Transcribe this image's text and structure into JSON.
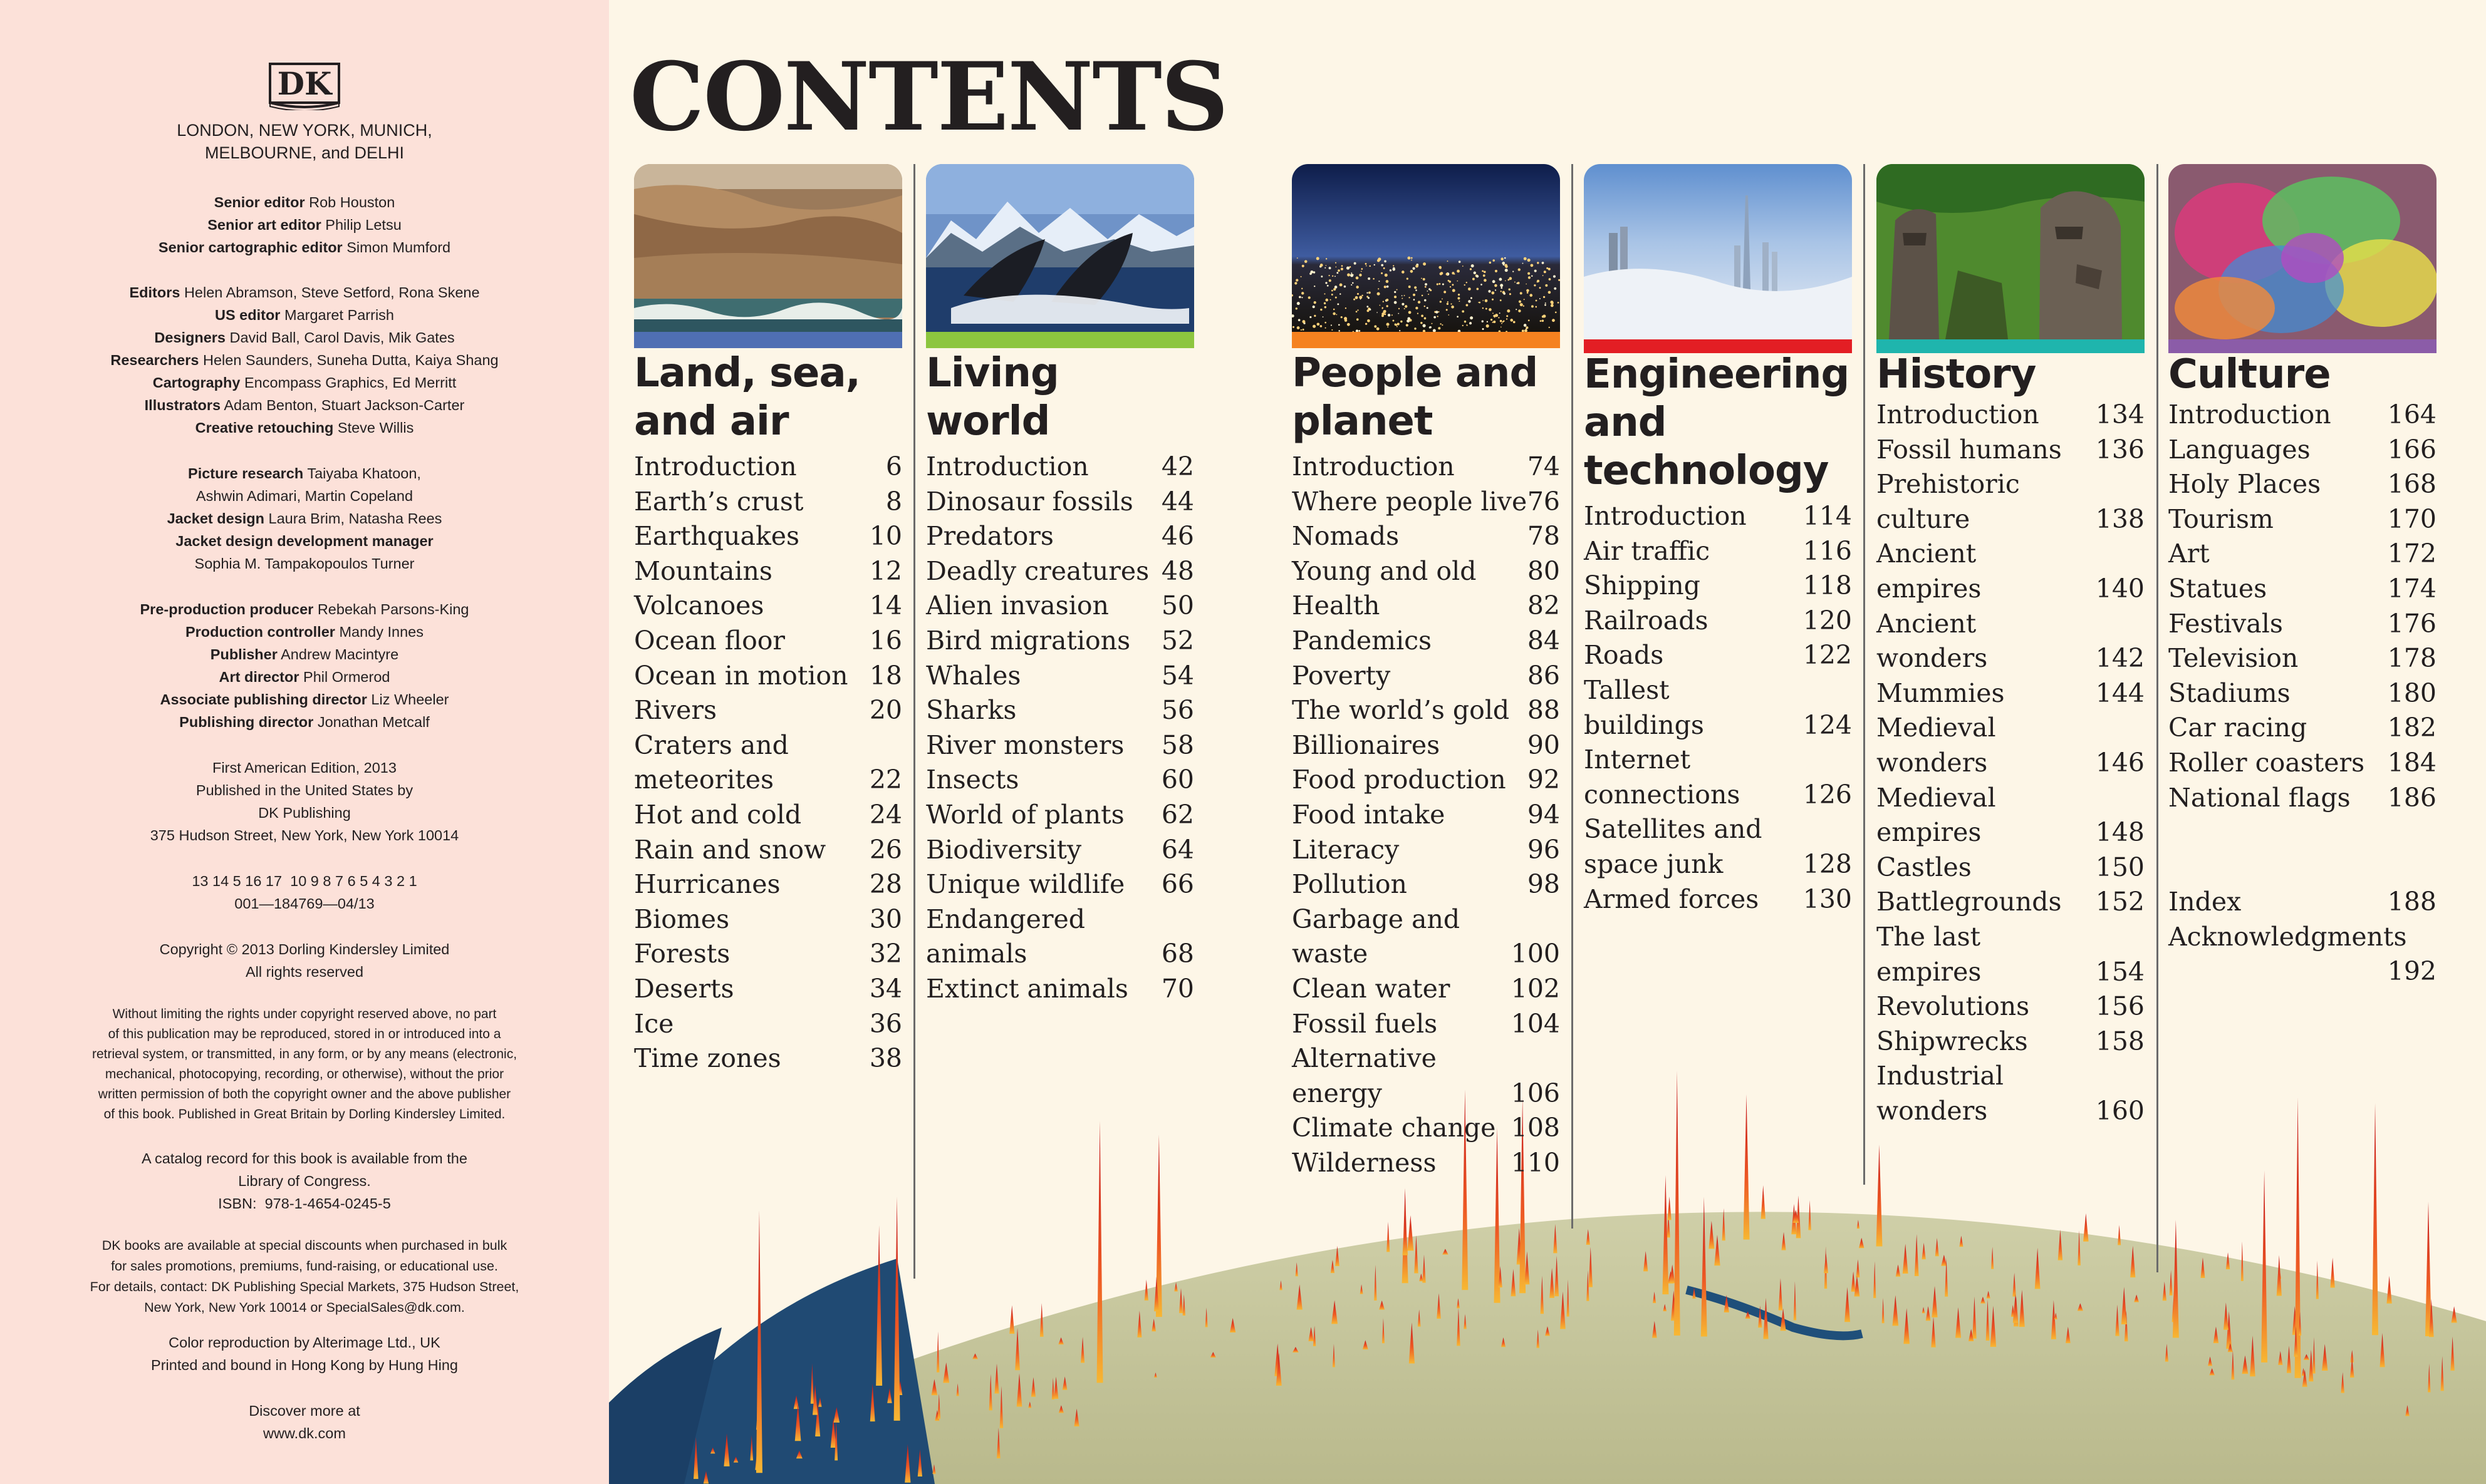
{
  "imprint": {
    "logo": "DK",
    "city_line_1": "LONDON, NEW YORK, MUNICH,",
    "city_line_2": "MELBOURNE, and DELHI",
    "credits": [
      {
        "role": "Senior editor",
        "name": "Rob Houston"
      },
      {
        "role": "Senior art editor",
        "name": "Philip Letsu"
      },
      {
        "role": "Senior cartographic editor",
        "name": "Simon Mumford"
      },
      {
        "role": "Editors",
        "name": "Helen Abramson, Steve Setford, Rona Skene"
      },
      {
        "role": "US editor",
        "name": "Margaret Parrish"
      },
      {
        "role": "Designers",
        "name": "David Ball, Carol Davis, Mik Gates"
      },
      {
        "role": "Researchers",
        "name": "Helen Saunders, Suneha Dutta, Kaiya Shang"
      },
      {
        "role": "Cartography",
        "name": "Encompass Graphics, Ed Merritt"
      },
      {
        "role": "Illustrators",
        "name": "Adam Benton, Stuart Jackson-Carter"
      },
      {
        "role": "Creative retouching",
        "name": "Steve Willis"
      },
      {
        "role": "Picture research",
        "name": "Taiyaba Khatoon,"
      },
      {
        "role": "",
        "name": "Ashwin Adimari, Martin Copeland"
      },
      {
        "role": "Jacket design",
        "name": "Laura Brim, Natasha Rees"
      },
      {
        "role": "Jacket design development manager",
        "name": ""
      },
      {
        "role": "",
        "name": "Sophia M. Tampakopoulos Turner"
      },
      {
        "role": "Pre-production producer",
        "name": "Rebekah Parsons-King"
      },
      {
        "role": "Production controller",
        "name": "Mandy Innes"
      },
      {
        "role": "Publisher",
        "name": "Andrew Macintyre"
      },
      {
        "role": "Art director",
        "name": "Phil Ormerod"
      },
      {
        "role": "Associate publishing director",
        "name": "Liz Wheeler"
      },
      {
        "role": "Publishing director",
        "name": "Jonathan Metcalf"
      }
    ],
    "edition_lines": [
      "First American Edition, 2013",
      "Published in the United States by",
      "DK Publishing",
      "375 Hudson Street, New York, New York 10014"
    ],
    "print_lines": [
      "13 14 5 16 17  10 9 8 7 6 5 4 3 2 1",
      "001—184769—04/13"
    ],
    "copyright_lines": [
      "Copyright © 2013 Dorling Kindersley Limited",
      "All rights reserved"
    ],
    "legal_lines": [
      "Without limiting the rights under copyright reserved above, no part",
      "of this publication may be reproduced, stored in or introduced into a",
      "retrieval system, or transmitted, in any form, or by any means (electronic,",
      "mechanical, photocopying, recording, or otherwise), without the prior",
      "written permission of both the copyright owner and the above publisher",
      "of this book. Published in Great Britain by Dorling Kindersley Limited."
    ],
    "catalog_lines": [
      "A catalog record for this book is available from the",
      "Library of Congress.",
      "ISBN:  978-1-4654-0245-5"
    ],
    "sales_lines": [
      "DK books are available at special discounts when purchased in bulk",
      "for sales promotions, premiums, fund-raising, or educational use.",
      "For details, contact: DK Publishing Special Markets, 375 Hudson Street,",
      "New York, New York 10014 or SpecialSales@dk.com."
    ],
    "print_credit_lines": [
      "Color reproduction by Alterimage Ltd., UK",
      "Printed and bound in Hong Kong by Hung Hing"
    ],
    "discover_lines": [
      "Discover more at",
      "www.dk.com"
    ]
  },
  "title": "CONTENTS",
  "colors": {
    "imprint_bg": "#fce1d9",
    "page_bg": "#fdf6e7",
    "bar_land": "#4f6fb3",
    "bar_living": "#8dc63f",
    "bar_people": "#f58220",
    "bar_engineering": "#e31e24",
    "bar_history": "#1fb5ad",
    "bar_culture": "#8b5ca8"
  },
  "sections": {
    "land": {
      "icon": "desert-coast-photo",
      "heading_1": "Land, sea,",
      "heading_2": "and air",
      "items": [
        {
          "label": "Introduction",
          "page": "6"
        },
        {
          "label": "Earth’s crust",
          "page": "8"
        },
        {
          "label": "Earthquakes",
          "page": "10"
        },
        {
          "label": "Mountains",
          "page": "12"
        },
        {
          "label": "Volcanoes",
          "page": "14"
        },
        {
          "label": "Ocean floor",
          "page": "16"
        },
        {
          "label": "Ocean in motion",
          "page": "18"
        },
        {
          "label": "Rivers",
          "page": "20"
        },
        {
          "label": "Craters and",
          "label2": "meteorites",
          "page": "22"
        },
        {
          "label": "Hot and cold",
          "page": "24"
        },
        {
          "label": "Rain and snow",
          "page": "26"
        },
        {
          "label": "Hurricanes",
          "page": "28"
        },
        {
          "label": "Biomes",
          "page": "30"
        },
        {
          "label": "Forests",
          "page": "32"
        },
        {
          "label": "Deserts",
          "page": "34"
        },
        {
          "label": "Ice",
          "page": "36"
        },
        {
          "label": "Time zones",
          "page": "38"
        }
      ]
    },
    "living": {
      "icon": "whales-breaching-photo",
      "heading_1": "Living",
      "heading_2": "world",
      "items": [
        {
          "label": "Introduction",
          "page": "42"
        },
        {
          "label": "Dinosaur fossils",
          "page": "44"
        },
        {
          "label": "Predators",
          "page": "46"
        },
        {
          "label": "Deadly creatures",
          "page": "48"
        },
        {
          "label": "Alien invasion",
          "page": "50"
        },
        {
          "label": "Bird migrations",
          "page": "52"
        },
        {
          "label": "Whales",
          "page": "54"
        },
        {
          "label": "Sharks",
          "page": "56"
        },
        {
          "label": "River monsters",
          "page": "58"
        },
        {
          "label": "Insects",
          "page": "60"
        },
        {
          "label": "World of plants",
          "page": "62"
        },
        {
          "label": "Biodiversity",
          "page": "64"
        },
        {
          "label": "Unique wildlife",
          "page": "66"
        },
        {
          "label": "Endangered",
          "label2": "animals",
          "page": "68"
        },
        {
          "label": "Extinct animals",
          "page": "70"
        }
      ]
    },
    "people": {
      "icon": "city-lights-photo",
      "heading_1": "People and",
      "heading_2": "planet",
      "items": [
        {
          "label": "Introduction",
          "page": "74"
        },
        {
          "label": "Where people live",
          "page": "76"
        },
        {
          "label": "Nomads",
          "page": "78"
        },
        {
          "label": "Young and old",
          "page": "80"
        },
        {
          "label": "Health",
          "page": "82"
        },
        {
          "label": "Pandemics",
          "page": "84"
        },
        {
          "label": "Poverty",
          "page": "86"
        },
        {
          "label": "The world’s gold",
          "page": "88"
        },
        {
          "label": "Billionaires",
          "page": "90"
        },
        {
          "label": "Food production",
          "page": "92"
        },
        {
          "label": "Food intake",
          "page": "94"
        },
        {
          "label": "Literacy",
          "page": "96"
        },
        {
          "label": "Pollution",
          "page": "98"
        },
        {
          "label": "Garbage and",
          "label2": "waste",
          "page": "100"
        },
        {
          "label": "Clean water",
          "page": "102"
        },
        {
          "label": "Fossil fuels",
          "page": "104"
        },
        {
          "label": "Alternative",
          "label2": "energy",
          "page": "106"
        },
        {
          "label": "Climate change",
          "page": "108"
        },
        {
          "label": "Wilderness",
          "page": "110"
        }
      ]
    },
    "engineering": {
      "icon": "skyscrapers-fog-photo",
      "heading_1": "Engineering",
      "heading_2": "and",
      "heading_3": "technology",
      "items": [
        {
          "label": "Introduction",
          "page": "114"
        },
        {
          "label": "Air traffic",
          "page": "116"
        },
        {
          "label": "Shipping",
          "page": "118"
        },
        {
          "label": "Railroads",
          "page": "120"
        },
        {
          "label": "Roads",
          "page": "122"
        },
        {
          "label": "Tallest",
          "label2": "buildings",
          "page": "124"
        },
        {
          "label": "Internet",
          "label2": "connections",
          "page": "126"
        },
        {
          "label": "Satellites and",
          "label2": "space junk",
          "page": "128"
        },
        {
          "label": "Armed forces",
          "page": "130"
        }
      ]
    },
    "history": {
      "icon": "easter-island-moai-photo",
      "heading_1": "History",
      "items": [
        {
          "label": "Introduction",
          "page": "134"
        },
        {
          "label": "Fossil humans",
          "page": "136"
        },
        {
          "label": "Prehistoric",
          "label2": "culture",
          "page": "138"
        },
        {
          "label": "Ancient",
          "label2": "empires",
          "page": "140"
        },
        {
          "label": "Ancient",
          "label2": "wonders",
          "page": "142"
        },
        {
          "label": "Mummies",
          "page": "144"
        },
        {
          "label": "Medieval",
          "label2": "wonders",
          "page": "146"
        },
        {
          "label": "Medieval",
          "label2": "empires",
          "page": "148"
        },
        {
          "label": "Castles",
          "page": "150"
        },
        {
          "label": "Battlegrounds",
          "page": "152"
        },
        {
          "label": "The last",
          "label2": "empires",
          "page": "154"
        },
        {
          "label": "Revolutions",
          "page": "156"
        },
        {
          "label": "Shipwrecks",
          "page": "158"
        },
        {
          "label": "Industrial",
          "label2": "wonders",
          "page": "160"
        }
      ]
    },
    "culture": {
      "icon": "holi-colors-photo",
      "heading_1": "Culture",
      "items": [
        {
          "label": "Introduction",
          "page": "164"
        },
        {
          "label": "Languages",
          "page": "166"
        },
        {
          "label": "Holy Places",
          "page": "168"
        },
        {
          "label": "Tourism",
          "page": "170"
        },
        {
          "label": "Art",
          "page": "172"
        },
        {
          "label": "Statues",
          "page": "174"
        },
        {
          "label": "Festivals",
          "page": "176"
        },
        {
          "label": "Television",
          "page": "178"
        },
        {
          "label": "Stadiums",
          "page": "180"
        },
        {
          "label": "Car racing",
          "page": "182"
        },
        {
          "label": "Roller coasters",
          "page": "184"
        },
        {
          "label": "National flags",
          "page": "186"
        }
      ],
      "index": {
        "label": "Index",
        "page": "188"
      },
      "acknowledgments": {
        "label": "Acknowledgments",
        "page": "192"
      }
    }
  }
}
